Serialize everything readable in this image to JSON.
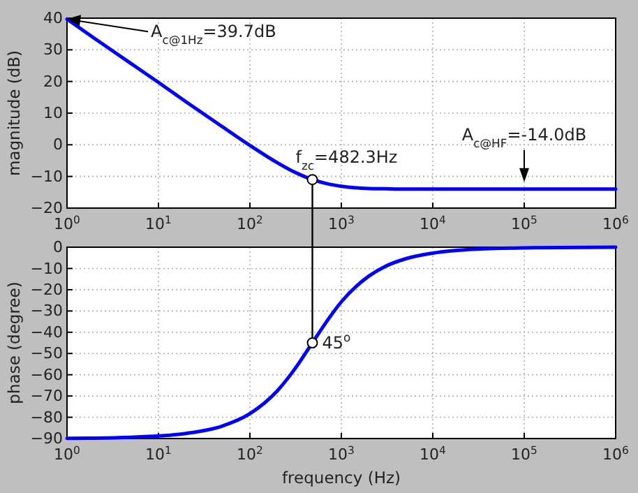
{
  "chart_data": [
    {
      "type": "line",
      "ylabel": "magnitude (dB)",
      "xlim": [
        1,
        1000000
      ],
      "log": "x",
      "xticks": [
        {
          "value": 1,
          "label": "10$^{0}$"
        },
        {
          "value": 10,
          "label": "10$^{1}$"
        },
        {
          "value": 100,
          "label": "10$^{2}$"
        },
        {
          "value": 1000,
          "label": "10$^{3}$"
        },
        {
          "value": 10000,
          "label": "10$^{4}$"
        },
        {
          "value": 100000,
          "label": "10$^{5}$"
        },
        {
          "value": 1000000,
          "label": "10$^{6}$"
        }
      ],
      "ylim": [
        -20,
        40
      ],
      "yticks": [
        {
          "value": -20,
          "label": "−20"
        },
        {
          "value": -10,
          "label": "−10"
        },
        0,
        10,
        20,
        30,
        40
      ],
      "grid": true,
      "line_style": "solid",
      "x": [
        1,
        2,
        5,
        10,
        20,
        50,
        100,
        200,
        300,
        482.3,
        700,
        1000,
        2000,
        3000,
        5000,
        10000,
        100000,
        1000000
      ],
      "series": [
        {
          "color": "#0000ff",
          "values": [
            39.7,
            33.6,
            25.7,
            19.7,
            13.6,
            5.7,
            -0.2,
            -5.7,
            -8.5,
            -11.0,
            -12.3,
            -13.1,
            -13.8,
            -13.9,
            -14.0,
            -14.0,
            -14.0,
            -14.0
          ]
        }
      ],
      "annotations": [
        {
          "text": "A$_{c@1Hz}$=39.7dB",
          "x": 1,
          "y": 39.7
        },
        {
          "text": "A$_{c@HF}$=-14.0dB",
          "x": 100000,
          "y": -14.0
        },
        {
          "text": "f$_{zc}$=482.3Hz",
          "x": 482.3,
          "y": -11.0
        }
      ],
      "ref_lines": [
        {
          "axis": "x",
          "value": 482.3,
          "color": "#000000"
        }
      ]
    },
    {
      "type": "line",
      "xlabel": "frequency (Hz)",
      "ylabel": "phase (degree)",
      "xlim": [
        1,
        1000000
      ],
      "log": "x",
      "xticks": [
        {
          "value": 1,
          "label": "10$^{0}$"
        },
        {
          "value": 10,
          "label": "10$^{1}$"
        },
        {
          "value": 100,
          "label": "10$^{2}$"
        },
        {
          "value": 1000,
          "label": "10$^{3}$"
        },
        {
          "value": 10000,
          "label": "10$^{4}$"
        },
        {
          "value": 100000,
          "label": "10$^{5}$"
        },
        {
          "value": 1000000,
          "label": "10$^{6}$"
        }
      ],
      "ylim": [
        -90,
        0
      ],
      "yticks": [
        {
          "value": -90,
          "label": "−90"
        },
        {
          "value": -80,
          "label": "−80"
        },
        {
          "value": -70,
          "label": "−70"
        },
        {
          "value": -60,
          "label": "−60"
        },
        {
          "value": -50,
          "label": "−50"
        },
        {
          "value": -40,
          "label": "−40"
        },
        {
          "value": -30,
          "label": "−30"
        },
        {
          "value": -20,
          "label": "−20"
        },
        {
          "value": -10,
          "label": "−10"
        },
        0
      ],
      "grid": true,
      "line_style": "solid",
      "x": [
        1,
        2,
        5,
        10,
        20,
        50,
        100,
        200,
        300,
        482.3,
        700,
        1000,
        2000,
        3000,
        5000,
        10000,
        30000,
        100000,
        1000000
      ],
      "series": [
        {
          "color": "#0000ff",
          "values": [
            -89.9,
            -89.8,
            -89.4,
            -88.8,
            -87.6,
            -84.1,
            -78.3,
            -67.5,
            -58.1,
            -45.0,
            -34.6,
            -25.7,
            -13.6,
            -9.1,
            -5.5,
            -2.8,
            -0.9,
            -0.3,
            0.0
          ]
        }
      ],
      "annotations": [
        {
          "text": "45$^{o}$",
          "x": 482.3,
          "y": -45.0
        }
      ],
      "ref_lines": [
        {
          "axis": "x",
          "value": 482.3,
          "color": "#000000"
        }
      ]
    }
  ]
}
